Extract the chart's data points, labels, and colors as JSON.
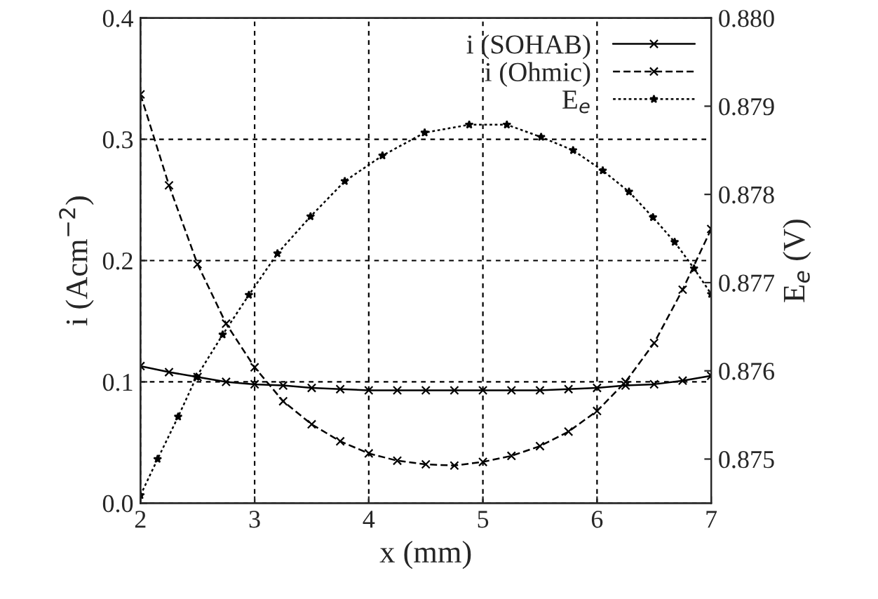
{
  "chart_data": {
    "type": "line",
    "xlabel": "x (mm)",
    "ylabel": "i (Acm$^{−2}$)",
    "y2label": "E$_{e}$ (V)",
    "xlim": [
      2,
      7
    ],
    "xticks": [
      2,
      3,
      4,
      5,
      6,
      7
    ],
    "ylim": [
      0,
      0.4
    ],
    "yticks": [
      {
        "value": 0,
        "label": "0.0"
      },
      {
        "value": 0.1,
        "label": "0.1"
      },
      {
        "value": 0.2,
        "label": "0.2"
      },
      {
        "value": 0.3,
        "label": "0.3"
      },
      {
        "value": 0.4,
        "label": "0.4"
      }
    ],
    "y2lim": [
      0.8745,
      0.88
    ],
    "y2ticks": [
      {
        "value": 0.875,
        "label": "0.875"
      },
      {
        "value": 0.876,
        "label": "0.876"
      },
      {
        "value": 0.877,
        "label": "0.877"
      },
      {
        "value": 0.878,
        "label": "0.878"
      },
      {
        "value": 0.879,
        "label": "0.879"
      },
      {
        "value": 0.88,
        "label": "0.880"
      }
    ],
    "grid": true,
    "legend": "top right",
    "series": [
      {
        "name": "i (SOHAB)",
        "color": "#000000",
        "marker": "cross",
        "line_style": "solid",
        "x": [
          2,
          2.25,
          2.5,
          2.75,
          3,
          3.25,
          3.5,
          3.75,
          4,
          4.25,
          4.5,
          4.75,
          5,
          5.25,
          5.5,
          5.75,
          6,
          6.25,
          6.5,
          6.75,
          7
        ],
        "values": [
          0.113,
          0.108,
          0.104,
          0.1,
          0.098,
          0.097,
          0.095,
          0.094,
          0.093,
          0.093,
          0.093,
          0.093,
          0.093,
          0.093,
          0.093,
          0.094,
          0.095,
          0.097,
          0.098,
          0.101,
          0.105
        ]
      },
      {
        "name": "i (Ohmic)",
        "color": "#000000",
        "marker": "cross",
        "line_style": "dashed",
        "x": [
          2,
          2.25,
          2.5,
          2.75,
          3,
          3.25,
          3.5,
          3.75,
          4,
          4.25,
          4.5,
          4.75,
          5,
          5.25,
          5.5,
          5.75,
          6,
          6.25,
          6.5,
          6.75,
          7
        ],
        "values": [
          0.337,
          0.262,
          0.197,
          0.148,
          0.112,
          0.084,
          0.065,
          0.051,
          0.041,
          0.035,
          0.032,
          0.031,
          0.034,
          0.039,
          0.047,
          0.059,
          0.076,
          0.1,
          0.132,
          0.176,
          0.226
        ]
      },
      {
        "name": "E$_{e}$",
        "color": "#000000",
        "marker": "star",
        "line_style": "dotted",
        "axis": "y2",
        "x": [
          2.0,
          2.15,
          2.33,
          2.49,
          2.72,
          2.95,
          3.2,
          3.49,
          3.79,
          4.12,
          4.49,
          4.88,
          5.21,
          5.51,
          5.79,
          6.05,
          6.28,
          6.49,
          6.68,
          6.85,
          7.0
        ],
        "values": [
          0.87459,
          0.875,
          0.87548,
          0.87593,
          0.87641,
          0.87686,
          0.87733,
          0.87775,
          0.87815,
          0.87844,
          0.8787,
          0.87879,
          0.87879,
          0.87865,
          0.8785,
          0.87827,
          0.87803,
          0.87774,
          0.87746,
          0.87716,
          0.87687
        ]
      }
    ]
  }
}
